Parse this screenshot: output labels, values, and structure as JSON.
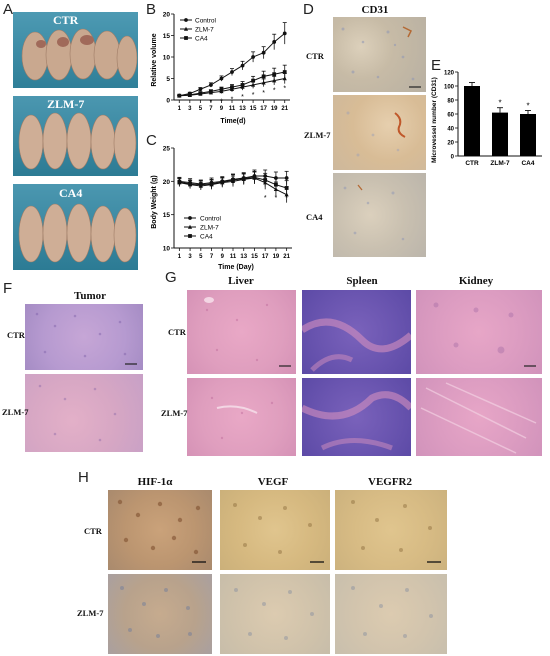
{
  "panels": {
    "A": "A",
    "B": "B",
    "C": "C",
    "D": "D",
    "E": "E",
    "F": "F",
    "G": "G",
    "H": "H"
  },
  "panel_a": {
    "labels": [
      "CTR",
      "ZLM-7",
      "CA4"
    ]
  },
  "panel_d": {
    "title": "CD31",
    "rows": [
      "CTR",
      "ZLM-7",
      "CA4"
    ]
  },
  "panel_f": {
    "title": "Tumor",
    "rows": [
      "CTR",
      "ZLM-7"
    ]
  },
  "panel_g": {
    "columns": [
      "Liver",
      "Spleen",
      "Kidney"
    ],
    "rows": [
      "CTR",
      "ZLM-7"
    ]
  },
  "panel_h": {
    "columns": [
      "HIF-1α",
      "VEGF",
      "VEGFR2"
    ],
    "rows": [
      "CTR",
      "ZLM-7"
    ]
  },
  "colors": {
    "mouse_bg": "#3f8fa8",
    "he_pink": "#e8a4c0",
    "he_purple": "#a07cc0",
    "ihc_tan": "#d9c49a",
    "ihc_blue": "#9fb3cc",
    "spleen_purple": "#6a55b0"
  },
  "chart_data": [
    {
      "type": "line",
      "title": "",
      "xlabel": "Time(d)",
      "ylabel": "Relative volume",
      "x": [
        1,
        3,
        5,
        7,
        9,
        11,
        13,
        15,
        17,
        19,
        21
      ],
      "xlim": [
        0,
        22
      ],
      "ylim": [
        0,
        20
      ],
      "yticks": [
        0,
        5,
        10,
        15,
        20
      ],
      "legend": "top-left",
      "series": [
        {
          "name": "Control",
          "marker": "circle",
          "values": [
            1.0,
            1.5,
            2.5,
            3.5,
            5.0,
            6.5,
            8.0,
            10.0,
            11.0,
            13.5,
            15.5
          ],
          "errors": [
            0.1,
            0.3,
            0.4,
            0.5,
            0.6,
            0.8,
            1.0,
            1.2,
            1.4,
            1.8,
            2.5
          ]
        },
        {
          "name": "ZLM-7",
          "marker": "triangle",
          "values": [
            1.0,
            1.1,
            1.4,
            1.7,
            2.0,
            2.5,
            3.0,
            3.5,
            4.0,
            4.5,
            5.0
          ],
          "errors": [
            0.1,
            0.2,
            0.3,
            0.4,
            0.5,
            0.6,
            0.7,
            0.8,
            0.9,
            1.0,
            1.2
          ]
        },
        {
          "name": "CA4",
          "marker": "square",
          "values": [
            1.0,
            1.2,
            1.6,
            2.0,
            2.5,
            3.0,
            3.5,
            4.5,
            5.5,
            6.0,
            6.5
          ],
          "errors": [
            0.1,
            0.2,
            0.3,
            0.4,
            0.5,
            0.6,
            0.8,
            1.0,
            1.2,
            1.4,
            1.6
          ]
        }
      ],
      "annotations": [
        "*"
      ]
    },
    {
      "type": "line",
      "title": "",
      "xlabel": "Time (Day)",
      "ylabel": "Body Weight (g)",
      "x": [
        1,
        3,
        5,
        7,
        9,
        11,
        13,
        15,
        17,
        19,
        21
      ],
      "xlim": [
        0,
        22
      ],
      "ylim": [
        10,
        25
      ],
      "yticks": [
        10,
        15,
        20,
        25
      ],
      "legend": "bottom-left",
      "series": [
        {
          "name": "Control",
          "marker": "circle",
          "values": [
            20.0,
            19.8,
            19.6,
            19.8,
            20.0,
            20.3,
            20.5,
            20.8,
            20.8,
            20.5,
            20.5
          ],
          "errors": [
            0.6,
            0.6,
            0.6,
            0.7,
            0.7,
            0.8,
            0.8,
            0.9,
            0.9,
            0.9,
            1.0
          ]
        },
        {
          "name": "ZLM-7",
          "marker": "triangle",
          "values": [
            19.8,
            19.5,
            19.3,
            19.5,
            19.8,
            20.0,
            20.3,
            20.5,
            19.8,
            18.8,
            18.0
          ],
          "errors": [
            0.6,
            0.6,
            0.6,
            0.7,
            0.7,
            0.8,
            0.8,
            0.9,
            1.0,
            1.1,
            1.2
          ]
        },
        {
          "name": "CA4",
          "marker": "square",
          "values": [
            19.9,
            19.6,
            19.5,
            19.6,
            19.9,
            20.2,
            20.4,
            20.6,
            20.2,
            19.5,
            19.0
          ],
          "errors": [
            0.6,
            0.6,
            0.6,
            0.7,
            0.7,
            0.8,
            0.8,
            0.9,
            1.0,
            1.0,
            1.1
          ]
        }
      ],
      "annotations": [
        "*"
      ]
    },
    {
      "type": "bar",
      "title": "",
      "xlabel": "",
      "ylabel": "Microvessel number (CD31)",
      "categories": [
        "CTR",
        "ZLM-7",
        "CA4"
      ],
      "values": [
        100,
        62,
        60
      ],
      "errors": [
        5,
        7,
        5
      ],
      "ylim": [
        0,
        120
      ],
      "yticks": [
        0,
        20,
        40,
        60,
        80,
        100,
        120
      ],
      "annotations": [
        "",
        "*",
        "*"
      ]
    }
  ]
}
